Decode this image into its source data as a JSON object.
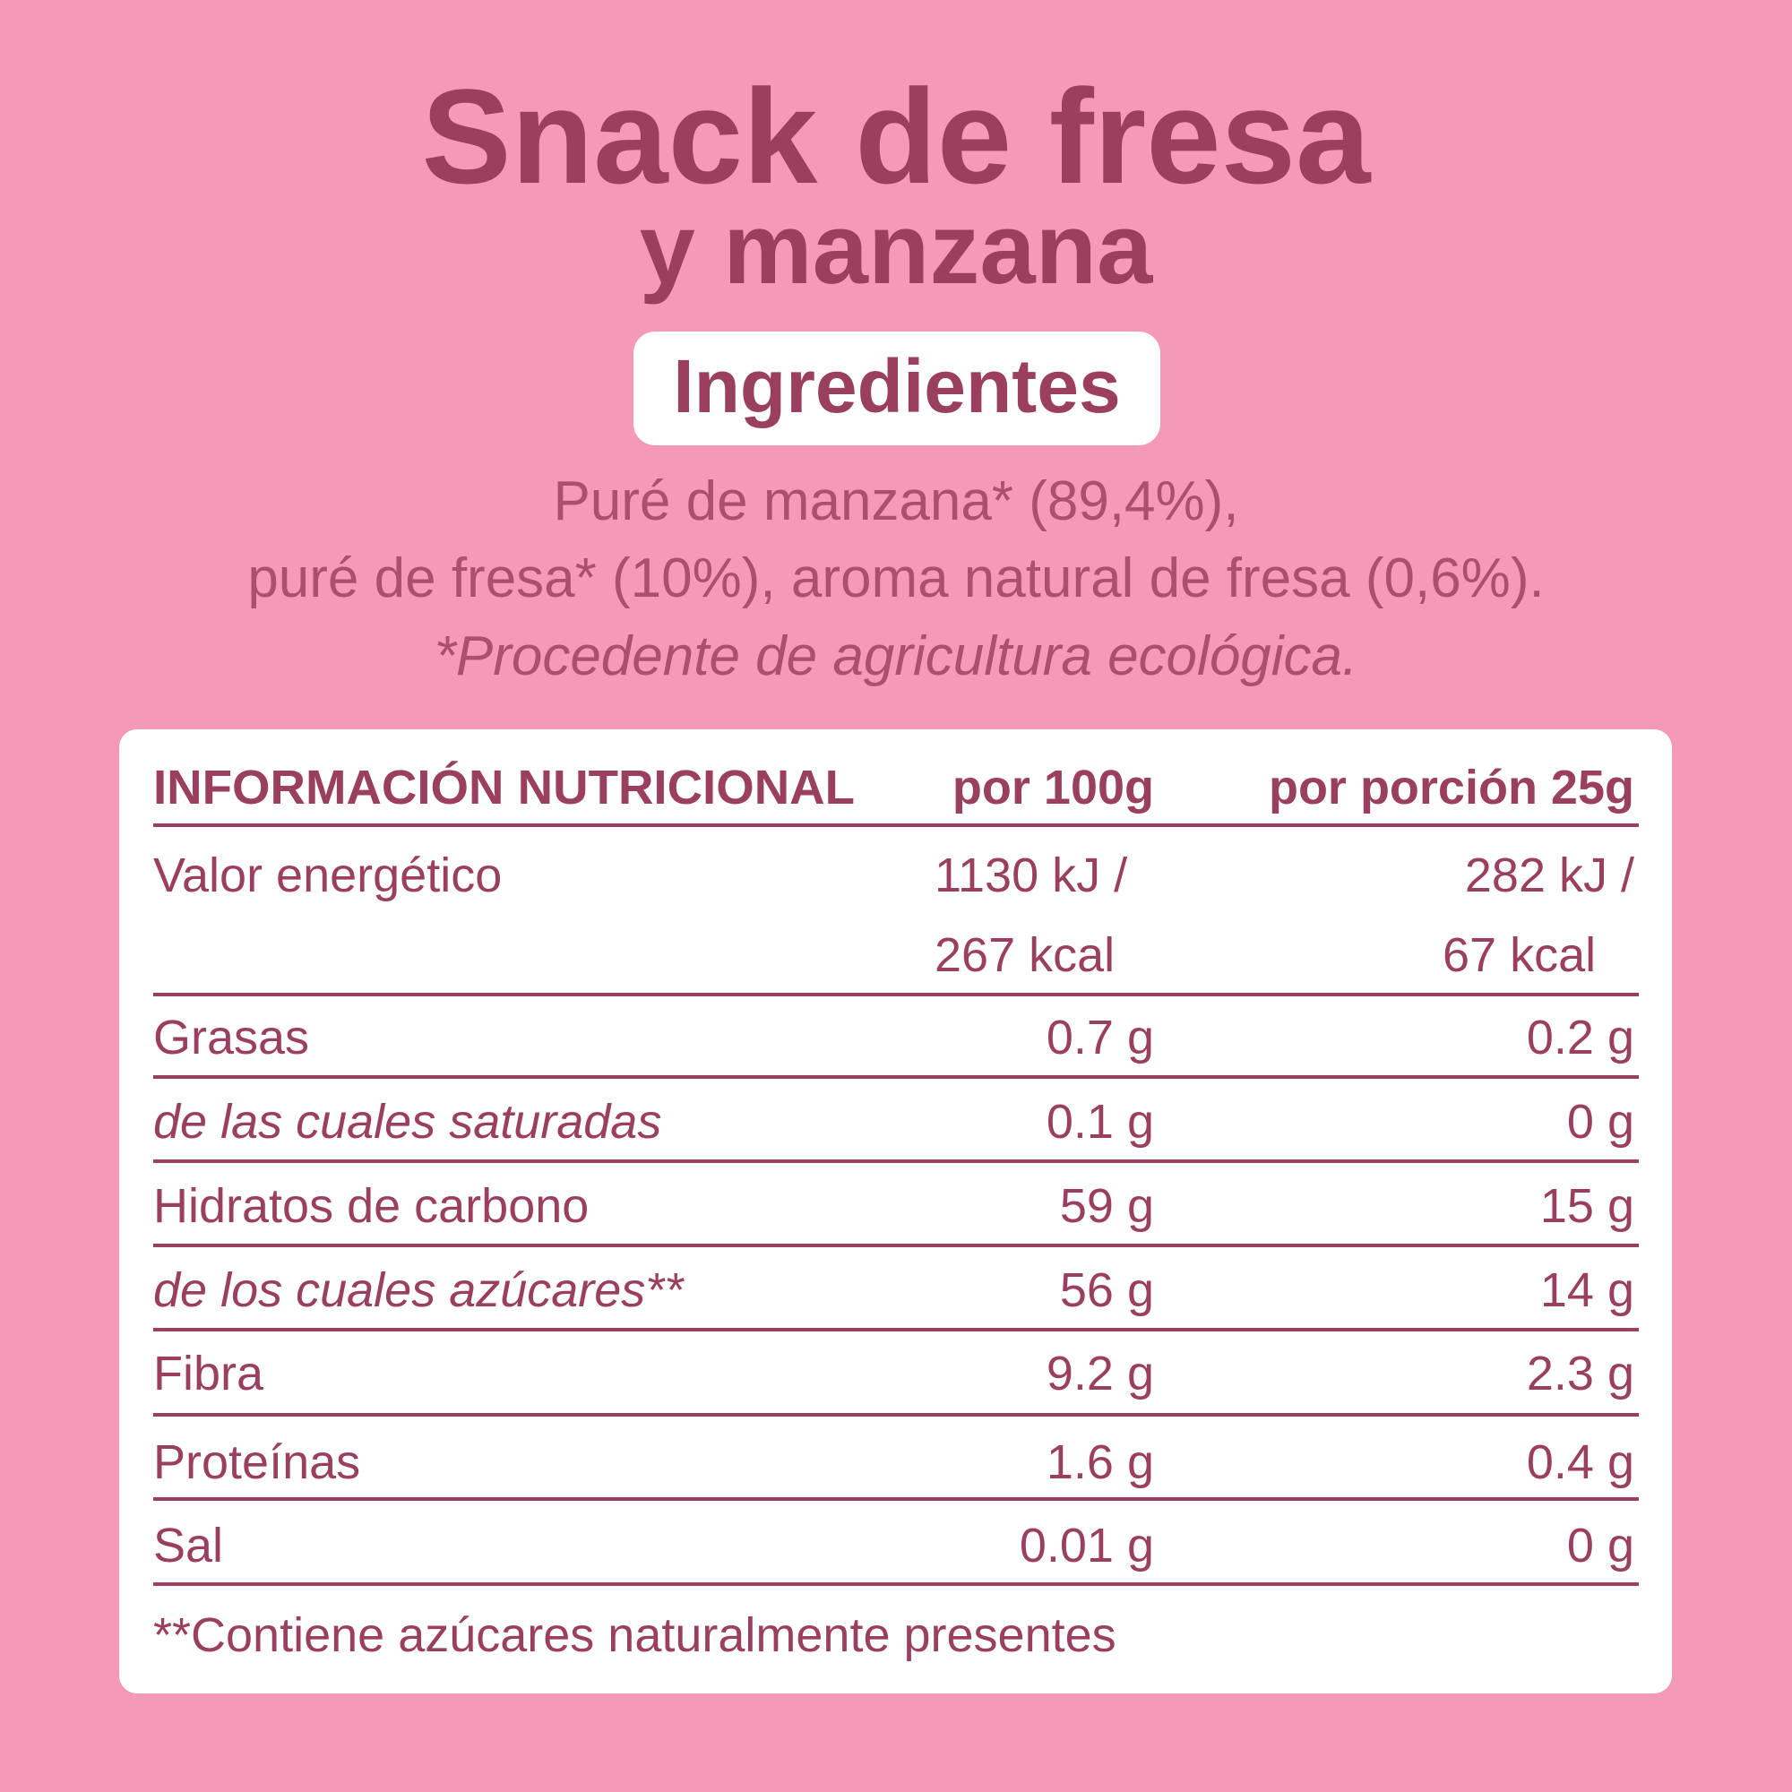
{
  "title": {
    "line1": "Snack de fresa",
    "line2": "y manzana"
  },
  "ingredients": {
    "heading": "Ingredientes",
    "lines": [
      "Puré de manzana* (89,4%),",
      "puré de fresa* (10%), aroma natural de fresa (0,6%).",
      "*Procedente de agricultura ecológica."
    ]
  },
  "table": {
    "header": [
      "INFORMACIÓN NUTRICIONAL",
      "por 100g",
      "por porción 25g"
    ],
    "energy": {
      "label": "Valor energético",
      "per100": [
        "1130 kJ /",
        "267 kcal"
      ],
      "portion": [
        "282 kJ /",
        "67 kcal"
      ]
    },
    "rows": [
      [
        "Grasas",
        "0.7 g",
        "0.2 g"
      ],
      [
        "de las cuales saturadas",
        "0.1 g",
        "0 g"
      ],
      [
        "Hidratos de carbono",
        "59 g",
        "15 g"
      ],
      [
        "de los cuales azúcares**",
        "56 g",
        "14 g"
      ],
      [
        "Fibra",
        "9.2 g",
        "2.3 g"
      ],
      [
        "Proteínas",
        "1.6 g",
        "0.4 g"
      ],
      [
        "Sal",
        "0.01 g",
        "0 g"
      ]
    ],
    "footnote": "**Contiene azúcares naturalmente presentes"
  }
}
